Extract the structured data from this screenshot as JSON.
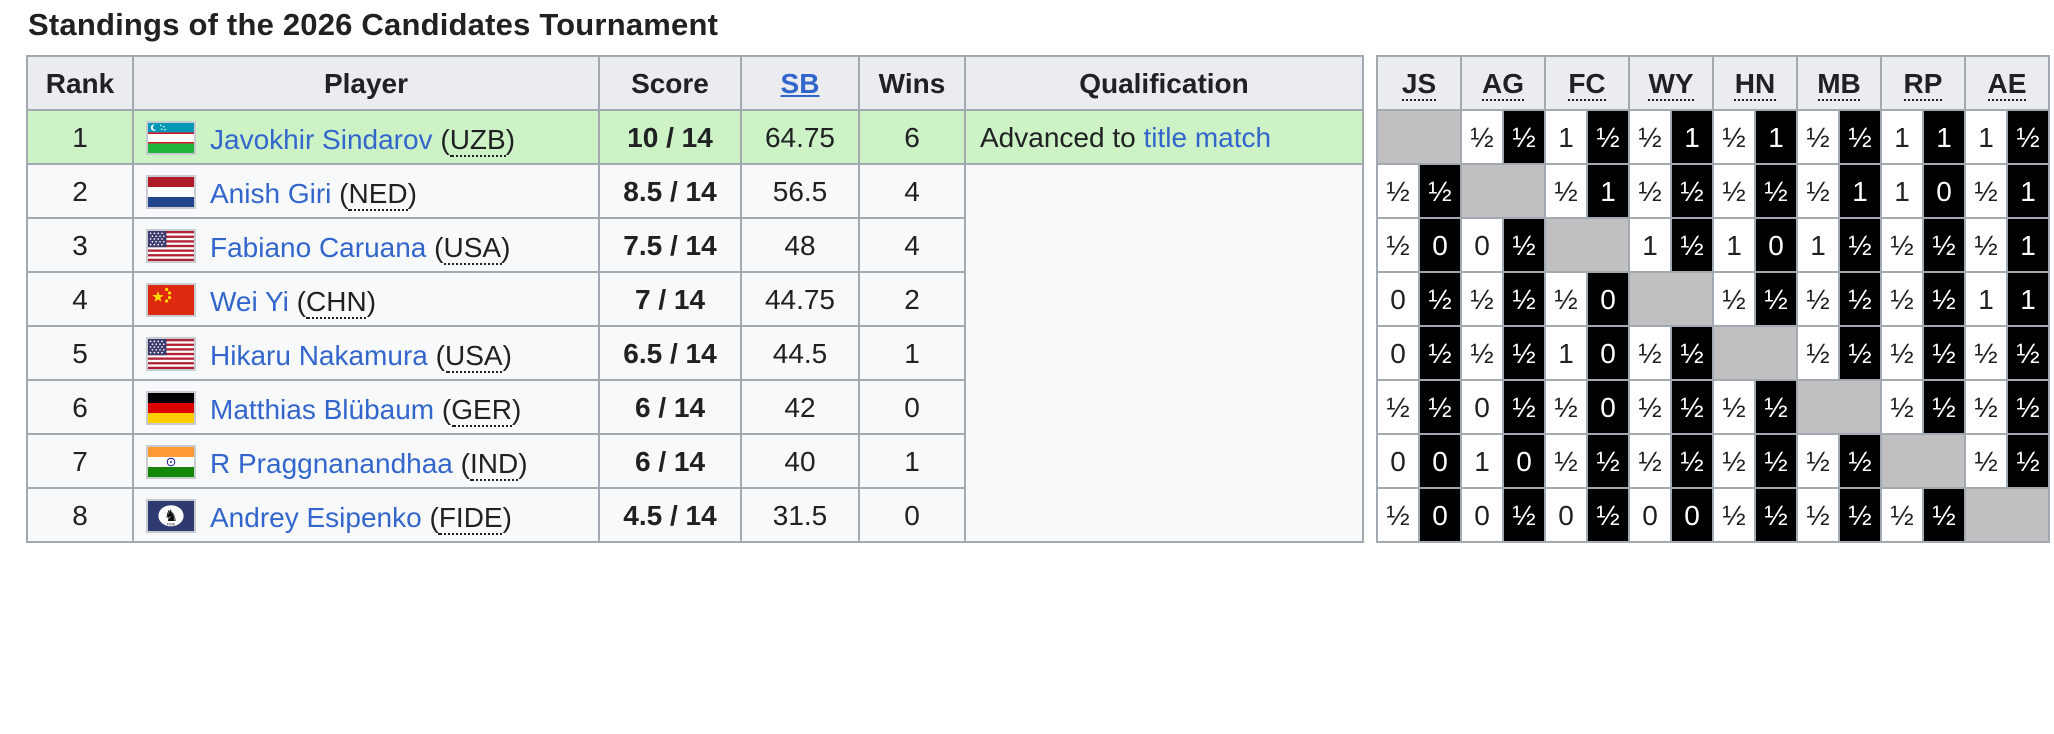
{
  "title": "Standings of the 2026 Candidates Tournament",
  "standings": {
    "headers": [
      {
        "label": "Rank",
        "is_link": false
      },
      {
        "label": "Player",
        "is_link": false
      },
      {
        "label": "Score",
        "is_link": false
      },
      {
        "label": "SB",
        "is_link": true
      },
      {
        "label": "Wins",
        "is_link": false
      },
      {
        "label": "Qualification",
        "is_link": false
      }
    ],
    "rows": [
      {
        "rank": "1",
        "player": "Javokhir Sindarov",
        "country": "UZB",
        "score": "10 / 14",
        "sb": "64.75",
        "wins": "6",
        "qualification": {
          "text": "Advanced to ",
          "link": "title match"
        },
        "highlighted": true
      },
      {
        "rank": "2",
        "player": "Anish Giri",
        "country": "NED",
        "score": "8.5 / 14",
        "sb": "56.5",
        "wins": "4",
        "qualification": null,
        "highlighted": false
      },
      {
        "rank": "3",
        "player": "Fabiano Caruana",
        "country": "USA",
        "score": "7.5 / 14",
        "sb": "48",
        "wins": "4",
        "qualification": null,
        "highlighted": false
      },
      {
        "rank": "4",
        "player": "Wei Yi",
        "country": "CHN",
        "score": "7 / 14",
        "sb": "44.75",
        "wins": "2",
        "qualification": null,
        "highlighted": false
      },
      {
        "rank": "5",
        "player": "Hikaru Nakamura",
        "country": "USA",
        "score": "6.5 / 14",
        "sb": "44.5",
        "wins": "1",
        "qualification": null,
        "highlighted": false
      },
      {
        "rank": "6",
        "player": "Matthias Blübaum",
        "country": "GER",
        "score": "6 / 14",
        "sb": "42",
        "wins": "0",
        "qualification": null,
        "highlighted": false
      },
      {
        "rank": "7",
        "player": "R Praggnanandhaa",
        "country": "IND",
        "score": "6 / 14",
        "sb": "40",
        "wins": "1",
        "qualification": null,
        "highlighted": false
      },
      {
        "rank": "8",
        "player": "Andrey Esipenko",
        "country": "FIDE",
        "score": "4.5 / 14",
        "sb": "31.5",
        "wins": "0",
        "qualification": null,
        "highlighted": false
      }
    ]
  },
  "crosstable": {
    "headers": [
      "JS",
      "AG",
      "FC",
      "WY",
      "HN",
      "MB",
      "RP",
      "AE"
    ],
    "results": [
      [
        null,
        [
          "½",
          "½"
        ],
        [
          "1",
          "½"
        ],
        [
          "½",
          "1"
        ],
        [
          "½",
          "1"
        ],
        [
          "½",
          "½"
        ],
        [
          "1",
          "1"
        ],
        [
          "1",
          "½"
        ]
      ],
      [
        [
          "½",
          "½"
        ],
        null,
        [
          "½",
          "1"
        ],
        [
          "½",
          "½"
        ],
        [
          "½",
          "½"
        ],
        [
          "½",
          "1"
        ],
        [
          "1",
          "0"
        ],
        [
          "½",
          "1"
        ]
      ],
      [
        [
          "½",
          "0"
        ],
        [
          "0",
          "½"
        ],
        null,
        [
          "1",
          "½"
        ],
        [
          "1",
          "0"
        ],
        [
          "1",
          "½"
        ],
        [
          "½",
          "½"
        ],
        [
          "½",
          "1"
        ]
      ],
      [
        [
          "0",
          "½"
        ],
        [
          "½",
          "½"
        ],
        [
          "½",
          "0"
        ],
        null,
        [
          "½",
          "½"
        ],
        [
          "½",
          "½"
        ],
        [
          "½",
          "½"
        ],
        [
          "1",
          "1"
        ]
      ],
      [
        [
          "0",
          "½"
        ],
        [
          "½",
          "½"
        ],
        [
          "1",
          "0"
        ],
        [
          "½",
          "½"
        ],
        null,
        [
          "½",
          "½"
        ],
        [
          "½",
          "½"
        ],
        [
          "½",
          "½"
        ]
      ],
      [
        [
          "½",
          "½"
        ],
        [
          "0",
          "½"
        ],
        [
          "½",
          "0"
        ],
        [
          "½",
          "½"
        ],
        [
          "½",
          "½"
        ],
        null,
        [
          "½",
          "½"
        ],
        [
          "½",
          "½"
        ]
      ],
      [
        [
          "0",
          "0"
        ],
        [
          "1",
          "0"
        ],
        [
          "½",
          "½"
        ],
        [
          "½",
          "½"
        ],
        [
          "½",
          "½"
        ],
        [
          "½",
          "½"
        ],
        null,
        [
          "½",
          "½"
        ]
      ],
      [
        [
          "½",
          "0"
        ],
        [
          "0",
          "½"
        ],
        [
          "0",
          "½"
        ],
        [
          "0",
          "0"
        ],
        [
          "½",
          "½"
        ],
        [
          "½",
          "½"
        ],
        [
          "½",
          "½"
        ],
        null
      ]
    ]
  },
  "colors": {
    "highlight_green": "#ccf2c6",
    "header_bg": "#eaecf0",
    "border": "#a2a9b1",
    "link_blue": "#3366cc",
    "diagonal_silver": "#c0c0c0",
    "cell_black": "#000000",
    "cell_white": "#ffffff",
    "row_bg": "#f8f9fa",
    "text": "#202122"
  }
}
